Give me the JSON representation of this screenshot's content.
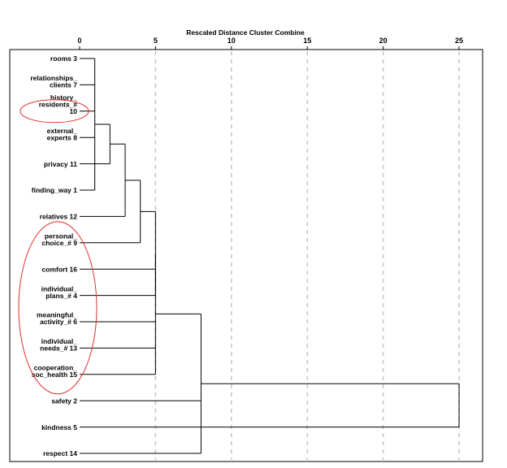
{
  "chart_data": {
    "type": "dendrogram",
    "title": "Rescaled Distance Cluster Combine",
    "xlim": [
      0,
      25
    ],
    "ticks": [
      0,
      5,
      10,
      15,
      20,
      25
    ],
    "grid": true,
    "leaves": [
      {
        "label": [
          "rooms 3"
        ]
      },
      {
        "label": [
          "relationships_",
          "clients 7"
        ]
      },
      {
        "label": [
          "history_",
          "residents_#",
          "10"
        ]
      },
      {
        "label": [
          "external_",
          "experts 8"
        ]
      },
      {
        "label": [
          "privacy 11"
        ]
      },
      {
        "label": [
          "finding_way 1"
        ]
      },
      {
        "label": [
          "relatives 12"
        ]
      },
      {
        "label": [
          "personal_",
          "choice_# 9"
        ]
      },
      {
        "label": [
          "comfort 16"
        ]
      },
      {
        "label": [
          "individual_",
          "plans_# 4"
        ]
      },
      {
        "label": [
          "meaningful_",
          "activity_# 6"
        ]
      },
      {
        "label": [
          "individual_",
          "needs_# 13"
        ]
      },
      {
        "label": [
          "cooperation_",
          "soc_health 15"
        ]
      },
      {
        "label": [
          "safety 2"
        ]
      },
      {
        "label": [
          "kindness 5"
        ]
      },
      {
        "label": [
          "respect 14"
        ]
      }
    ],
    "merges": [
      {
        "members": [
          0,
          1,
          2,
          3,
          5
        ],
        "distance": 1.0
      },
      {
        "members": [
          4
        ],
        "distance": 2.0
      },
      {
        "members": [
          6
        ],
        "distance": 3.0
      },
      {
        "members": [
          7
        ],
        "distance": 4.0
      },
      {
        "members": [
          9
        ],
        "distance": 5.0
      },
      {
        "members": [
          8,
          10,
          11,
          12
        ],
        "distance": 5.0
      },
      {
        "members": [
          13,
          15
        ],
        "distance": 8.0
      },
      {
        "members": [
          14
        ],
        "distance": 25.0
      }
    ],
    "annotations": [
      {
        "shape": "ellipse",
        "color": "#e03030",
        "leaves": [
          2
        ]
      },
      {
        "shape": "ellipse",
        "color": "#e03030",
        "leaves": [
          7,
          8,
          9,
          10,
          11,
          12
        ]
      }
    ]
  }
}
